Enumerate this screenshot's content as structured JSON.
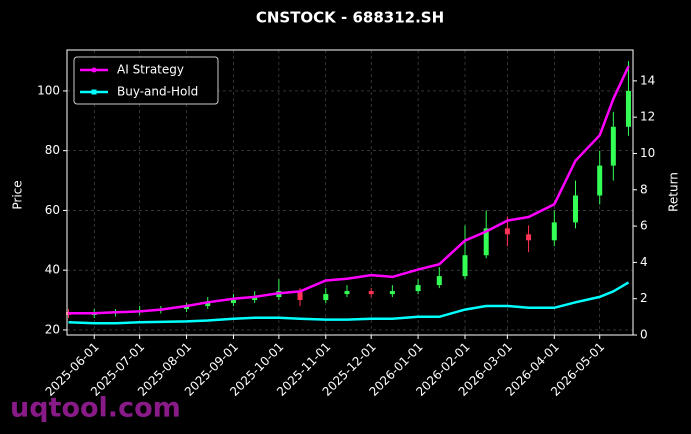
{
  "chart_data": {
    "type": "candlestick",
    "title": "CNSTOCK - 688312.SH",
    "ylabel": "Price",
    "y2label": "Return",
    "watermark": "uqtool.com",
    "up_color": "#33ff55",
    "down_color": "#ff3355",
    "grid": true,
    "legend": "upper left",
    "x": [
      "2025-05-15",
      "2025-06-01",
      "2025-06-15",
      "2025-07-01",
      "2025-07-15",
      "2025-08-01",
      "2025-08-15",
      "2025-09-01",
      "2025-09-15",
      "2025-10-01",
      "2025-10-15",
      "2025-11-01",
      "2025-11-15",
      "2025-12-01",
      "2025-12-15",
      "2026-01-01",
      "2026-01-15",
      "2026-02-01",
      "2026-02-15",
      "2026-03-01",
      "2026-03-15",
      "2026-04-01",
      "2026-04-15",
      "2026-05-01",
      "2026-05-10",
      "2026-05-20"
    ],
    "open": [
      26,
      25,
      25.5,
      26,
      26.5,
      27,
      28,
      29,
      30,
      31,
      33,
      30,
      32,
      33,
      32,
      33,
      35,
      38,
      45,
      54,
      52,
      50,
      56,
      65,
      75,
      88
    ],
    "close": [
      25,
      25.5,
      26,
      26.5,
      27,
      28,
      29,
      30,
      31,
      33,
      30,
      32,
      33,
      32,
      33,
      35,
      38,
      45,
      54,
      52,
      50,
      56,
      65,
      75,
      88,
      100
    ],
    "high": [
      27,
      27,
      27,
      28,
      28,
      29,
      31,
      32,
      33,
      37,
      34,
      34,
      35,
      34,
      35,
      37,
      41,
      55,
      60,
      58,
      55,
      60,
      70,
      80,
      93,
      110
    ],
    "low": [
      24,
      24,
      24.5,
      25,
      25.5,
      26,
      27,
      28,
      29,
      30,
      28,
      29,
      31,
      31,
      31,
      32,
      34,
      37,
      44,
      48,
      46,
      48,
      54,
      62,
      70,
      85
    ],
    "series": [
      {
        "name": "AI Strategy",
        "color": "#ff00ff",
        "axis": "y2",
        "values": [
          1.2,
          1.2,
          1.25,
          1.3,
          1.4,
          1.6,
          1.8,
          2.0,
          2.1,
          2.3,
          2.4,
          3.0,
          3.1,
          3.3,
          3.2,
          3.6,
          3.9,
          5.2,
          5.7,
          6.3,
          6.5,
          7.2,
          9.6,
          11.0,
          13.0,
          14.8
        ]
      },
      {
        "name": "Buy-and-Hold",
        "color": "#00ffff",
        "axis": "y2",
        "values": [
          0.7,
          0.65,
          0.65,
          0.7,
          0.72,
          0.75,
          0.8,
          0.9,
          0.95,
          0.95,
          0.9,
          0.85,
          0.85,
          0.9,
          0.9,
          1.0,
          1.0,
          1.4,
          1.6,
          1.6,
          1.5,
          1.5,
          1.8,
          2.1,
          2.4,
          2.9
        ]
      }
    ],
    "xlim": [
      "2025-05-14",
      "2026-05-23"
    ],
    "xticks": [
      "2025-06-01",
      "2025-07-01",
      "2025-08-01",
      "2025-09-01",
      "2025-10-01",
      "2025-11-01",
      "2025-12-01",
      "2026-01-01",
      "2026-02-01",
      "2026-03-01",
      "2026-04-01",
      "2026-05-01"
    ],
    "ylim": [
      18.3,
      113.7
    ],
    "yticks": [
      20,
      40,
      60,
      80,
      100
    ],
    "y2lim": [
      0,
      15.7
    ],
    "y2ticks": [
      0,
      2,
      4,
      6,
      8,
      10,
      12,
      14
    ]
  }
}
